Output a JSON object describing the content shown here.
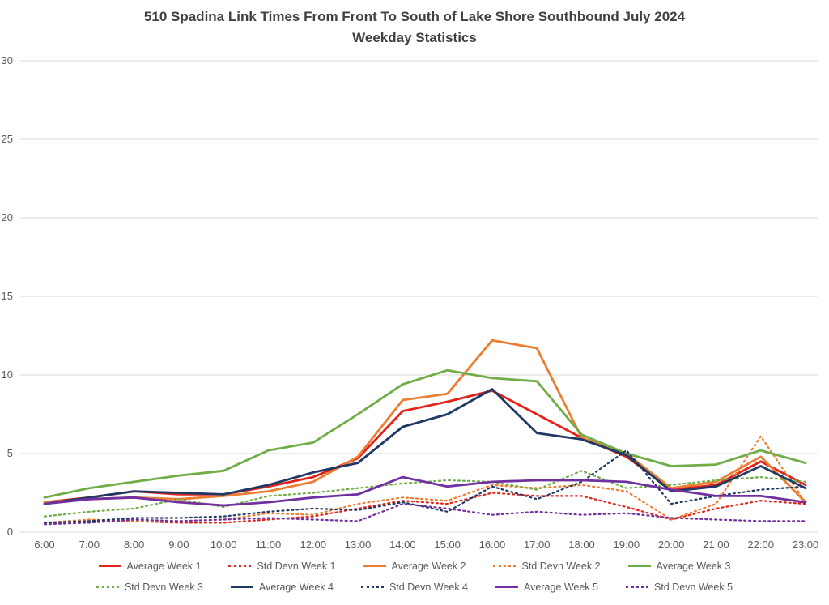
{
  "title": {
    "line1": "510 Spadina Link Times From Front To South of Lake Shore Southbound July 2024",
    "line2": "Weekday Statistics"
  },
  "chart_data": {
    "type": "line",
    "title": "510 Spadina Link Times From Front To South of Lake Shore Southbound July 2024 Weekday Statistics",
    "xlabel": "",
    "ylabel": "",
    "ylim": [
      0,
      30
    ],
    "yticks": [
      0,
      5,
      10,
      15,
      20,
      25,
      30
    ],
    "grid": true,
    "legend_position": "bottom",
    "x": [
      "6:00",
      "7:00",
      "8:00",
      "9:00",
      "10:00",
      "11:00",
      "12:00",
      "13:00",
      "14:00",
      "15:00",
      "16:00",
      "17:00",
      "18:00",
      "19:00",
      "20:00",
      "21:00",
      "22:00",
      "23:00"
    ],
    "series": [
      {
        "name": "Average Week 1",
        "color": "#e2231a",
        "style": "solid",
        "values": [
          1.9,
          2.2,
          2.6,
          2.4,
          2.4,
          2.9,
          3.5,
          4.7,
          7.7,
          8.3,
          9.0,
          7.5,
          6.0,
          4.8,
          2.7,
          3.0,
          4.5,
          3.0
        ]
      },
      {
        "name": "Std Devn Week 1",
        "color": "#e2231a",
        "style": "dotted",
        "values": [
          0.6,
          0.7,
          0.7,
          0.6,
          0.6,
          0.8,
          1.0,
          1.5,
          2.0,
          1.8,
          2.5,
          2.3,
          2.3,
          1.6,
          0.8,
          1.5,
          2.0,
          1.8
        ]
      },
      {
        "name": "Average Week 2",
        "color": "#ed7d31",
        "style": "solid",
        "values": [
          1.9,
          2.1,
          2.2,
          2.1,
          2.3,
          2.6,
          3.2,
          4.8,
          8.4,
          8.8,
          12.2,
          11.7,
          6.0,
          5.0,
          2.8,
          3.2,
          4.8,
          1.9
        ]
      },
      {
        "name": "Std Devn Week 2",
        "color": "#ed7d31",
        "style": "dotted",
        "values": [
          0.6,
          0.8,
          0.7,
          0.7,
          0.8,
          1.2,
          1.1,
          1.8,
          2.2,
          2.0,
          3.0,
          2.8,
          3.0,
          2.6,
          0.8,
          1.8,
          6.1,
          1.9
        ]
      },
      {
        "name": "Average Week 3",
        "color": "#70ad47",
        "style": "solid",
        "values": [
          2.2,
          2.8,
          3.2,
          3.6,
          3.9,
          5.2,
          5.7,
          7.5,
          9.4,
          10.3,
          9.8,
          9.6,
          6.2,
          5.0,
          4.2,
          4.3,
          5.2,
          4.4
        ]
      },
      {
        "name": "Std Devn Week 3",
        "color": "#70ad47",
        "style": "dotted",
        "values": [
          1.0,
          1.3,
          1.5,
          2.1,
          1.6,
          2.3,
          2.5,
          2.8,
          3.1,
          3.3,
          3.2,
          2.7,
          3.9,
          2.8,
          3.0,
          3.3,
          3.5,
          3.2
        ]
      },
      {
        "name": "Average Week 4",
        "color": "#1f3864",
        "style": "solid",
        "values": [
          1.8,
          2.2,
          2.6,
          2.5,
          2.4,
          3.0,
          3.8,
          4.4,
          6.7,
          7.5,
          9.1,
          6.3,
          5.9,
          4.9,
          2.6,
          2.9,
          4.2,
          2.8
        ]
      },
      {
        "name": "Std Devn Week 4",
        "color": "#1f3864",
        "style": "dotted",
        "values": [
          0.6,
          0.7,
          0.9,
          0.9,
          1.0,
          1.3,
          1.5,
          1.4,
          1.9,
          1.3,
          2.9,
          2.1,
          3.2,
          5.2,
          1.8,
          2.3,
          2.7,
          2.9
        ]
      },
      {
        "name": "Average Week 5",
        "color": "#7030a0",
        "style": "solid",
        "values": [
          1.8,
          2.1,
          2.2,
          1.9,
          1.7,
          1.9,
          2.2,
          2.4,
          3.5,
          2.9,
          3.2,
          3.3,
          3.3,
          3.2,
          2.7,
          2.3,
          2.3,
          1.9
        ]
      },
      {
        "name": "Std Devn Week 5",
        "color": "#7030a0",
        "style": "dotted",
        "values": [
          0.5,
          0.6,
          0.8,
          0.7,
          0.8,
          0.9,
          0.8,
          0.7,
          1.8,
          1.5,
          1.1,
          1.3,
          1.1,
          1.2,
          0.9,
          0.8,
          0.7,
          0.7
        ]
      }
    ],
    "legend_rows": [
      [
        0,
        1,
        2,
        3,
        4
      ],
      [
        5,
        6,
        7,
        8,
        9
      ]
    ],
    "grid_color": "#d9d9d9",
    "axis_label_color": "#595959",
    "title_color": "#404040"
  }
}
